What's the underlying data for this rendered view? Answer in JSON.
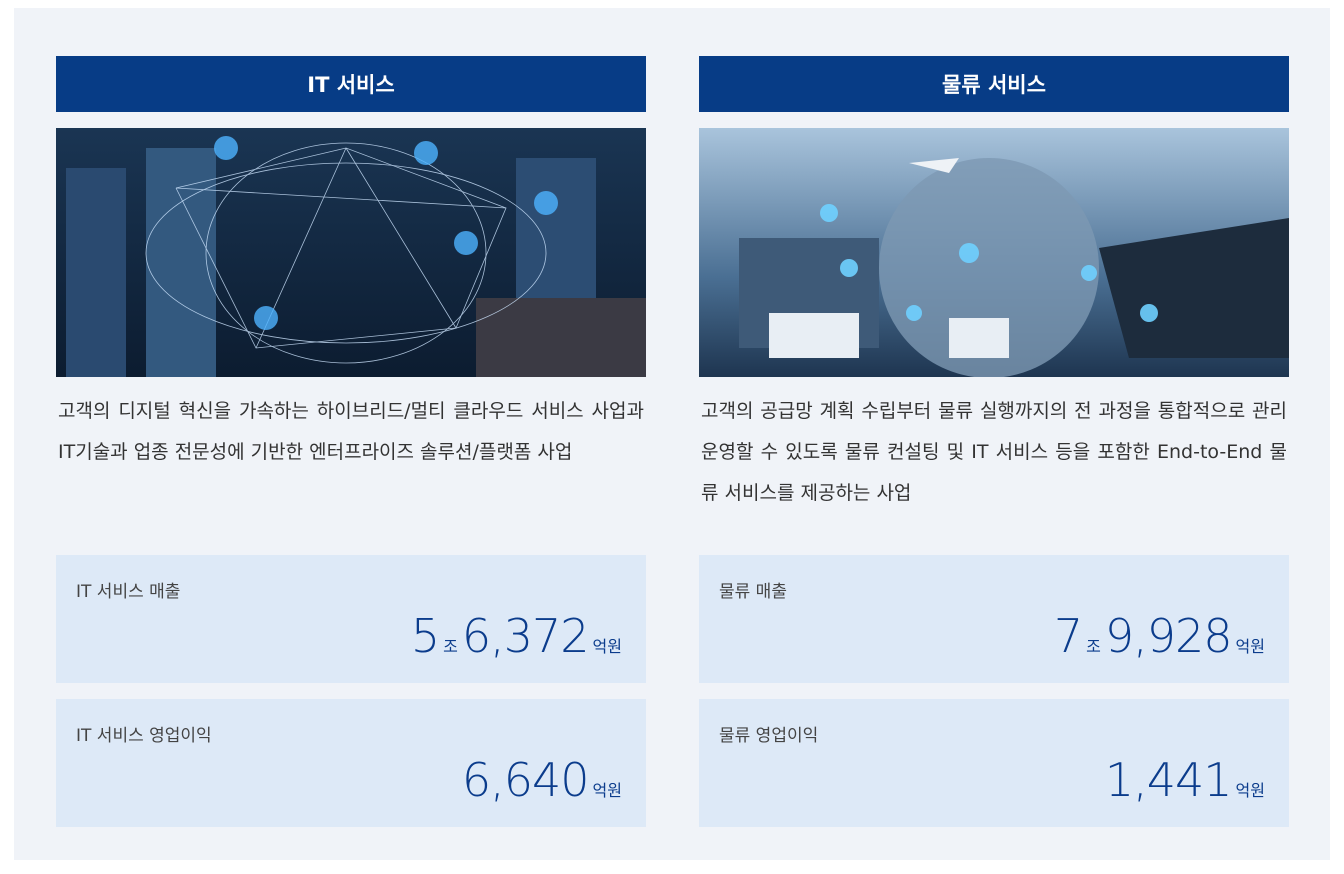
{
  "columns": [
    {
      "title": "IT 서비스",
      "description": "고객의 디지털 혁신을 가속하는 하이브리드/멀티 클라우드 서비스 사업과 IT기술과 업종 전문성에 기반한 엔터프라이즈 솔루션/플랫폼 사업",
      "stats": [
        {
          "label": "IT 서비스 매출",
          "parts": [
            "5",
            "조",
            "6,372",
            "억원"
          ]
        },
        {
          "label": "IT 서비스 영업이익",
          "parts": [
            "6,640",
            "억원"
          ]
        }
      ]
    },
    {
      "title": "물류 서비스",
      "description": "고객의 공급망 계획 수립부터 물류 실행까지의 전 과정을 통합적으로 관리 운영할 수 있도록 물류 컨설팅 및 IT 서비스 등을 포함한 End-to-End 물류 서비스를 제공하는 사업",
      "stats": [
        {
          "label": "물류 매출",
          "parts": [
            "7",
            "조",
            "9,928",
            "억원"
          ]
        },
        {
          "label": "물류 영업이익",
          "parts": [
            "1,441",
            "억원"
          ]
        }
      ]
    }
  ]
}
